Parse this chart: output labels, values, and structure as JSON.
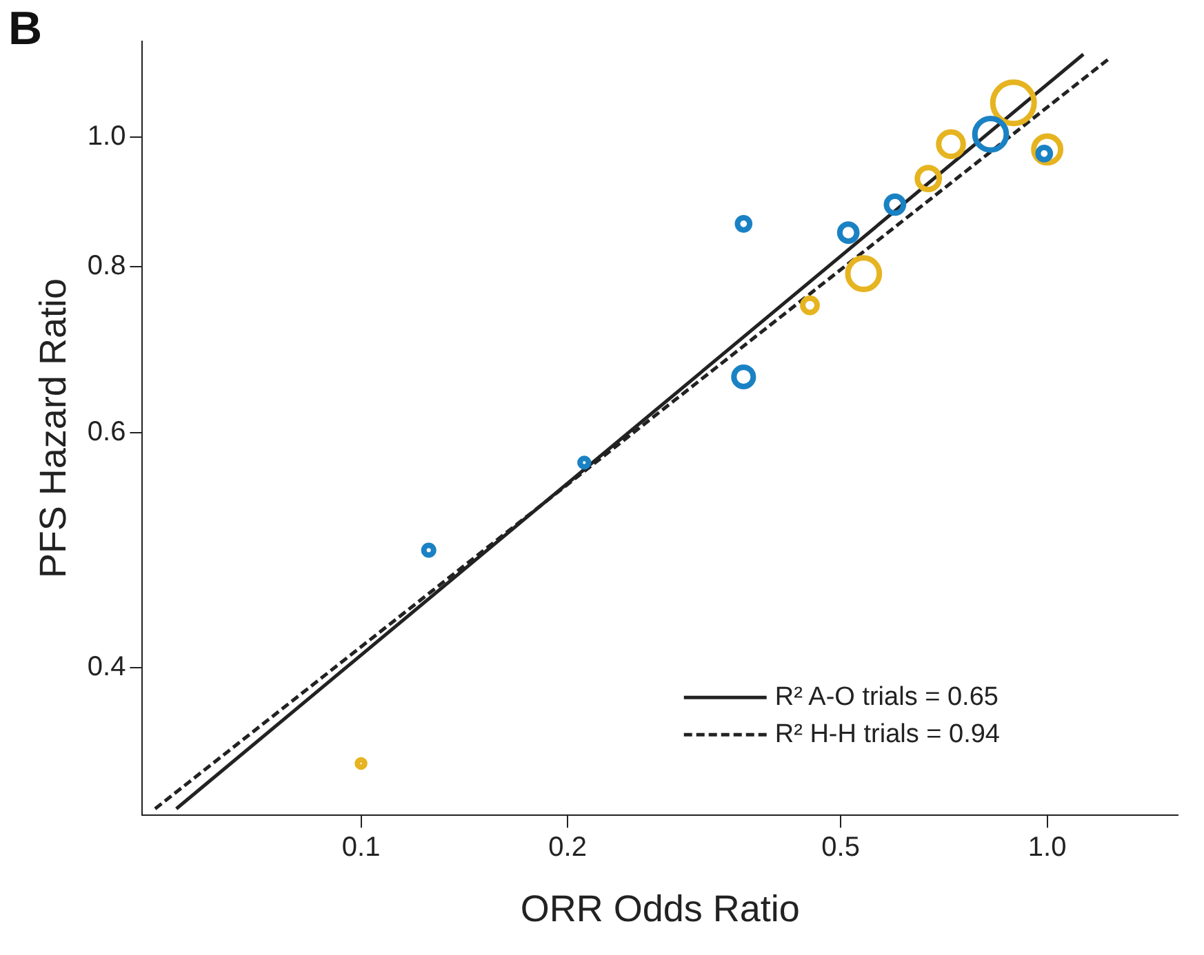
{
  "chart_data": {
    "type": "bubble",
    "xlabel": "ORR Odds Ratio",
    "ylabel": "PFS Hazard Ratio",
    "annotations": [
      "B"
    ],
    "log": "xy",
    "xlim": [
      0.048,
      1.55
    ],
    "ylim": [
      0.31,
      1.18
    ],
    "xticks": [
      0.1,
      0.2,
      0.5,
      {
        "value": 1,
        "label": "1.0"
      }
    ],
    "yticks": [
      0.4,
      0.6,
      0.8,
      {
        "value": 1,
        "label": "1.0"
      }
    ],
    "grid": false,
    "legend": "bottom right",
    "marker": "circle",
    "series": [
      {
        "type": "bubble",
        "color": "#1a82c4",
        "x": [
          0.1255,
          0.2115,
          0.361,
          0.361,
          0.513,
          0.6,
          0.827,
          0.99
        ],
        "values": [
          0.49,
          0.57,
          0.861,
          0.661,
          0.848,
          0.89,
          1.005,
          0.972
        ],
        "sizes": [
          0.055,
          0.042,
          0.087,
          0.22,
          0.17,
          0.17,
          0.58,
          0.087
        ]
      },
      {
        "type": "bubble",
        "color": "#e6b420",
        "x": [
          0.1,
          0.451,
          0.54,
          0.671,
          0.724,
          0.893,
          1.0
        ],
        "values": [
          0.339,
          0.748,
          0.79,
          0.931,
          0.988,
          1.061,
          0.979
        ],
        "sizes": [
          0.031,
          0.12,
          0.58,
          0.28,
          0.35,
          1,
          0.42
        ]
      },
      {
        "type": "line",
        "name": "R² A-O trials = 0.65",
        "color": "#222222",
        "line_style": "solid",
        "marker": "none",
        "x": [
          0.0538,
          1.129
        ],
        "values": [
          0.3135,
          1.154
        ]
      },
      {
        "type": "line",
        "name": "R² H-H trials = 0.94",
        "color": "#222222",
        "line_style": "dashed",
        "marker": "none",
        "x": [
          0.0501,
          1.238
        ],
        "values": [
          0.3135,
          1.148
        ]
      }
    ]
  }
}
